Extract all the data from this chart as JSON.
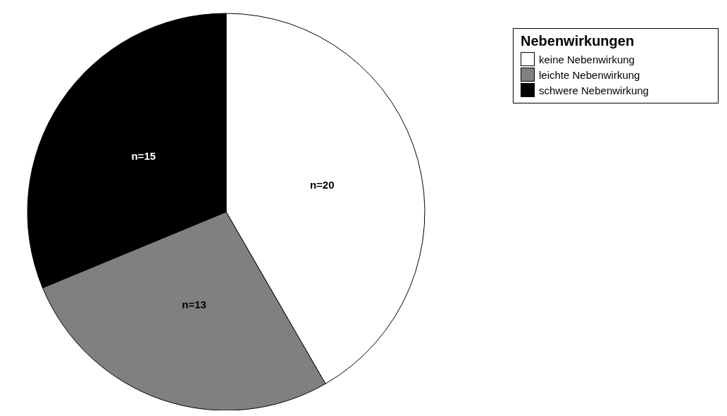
{
  "chart_data": {
    "type": "pie",
    "legend_title": "Nebenwirkungen",
    "categories": [
      "keine Nebenwirkung",
      "leichte Nebenwirkung",
      "schwere Nebenwirkung"
    ],
    "values": [
      20,
      13,
      15
    ],
    "colors": [
      "#ffffff",
      "#808080",
      "#000000"
    ],
    "value_labels": [
      "n=20",
      "n=13",
      "n=15"
    ],
    "legend": "top right"
  }
}
